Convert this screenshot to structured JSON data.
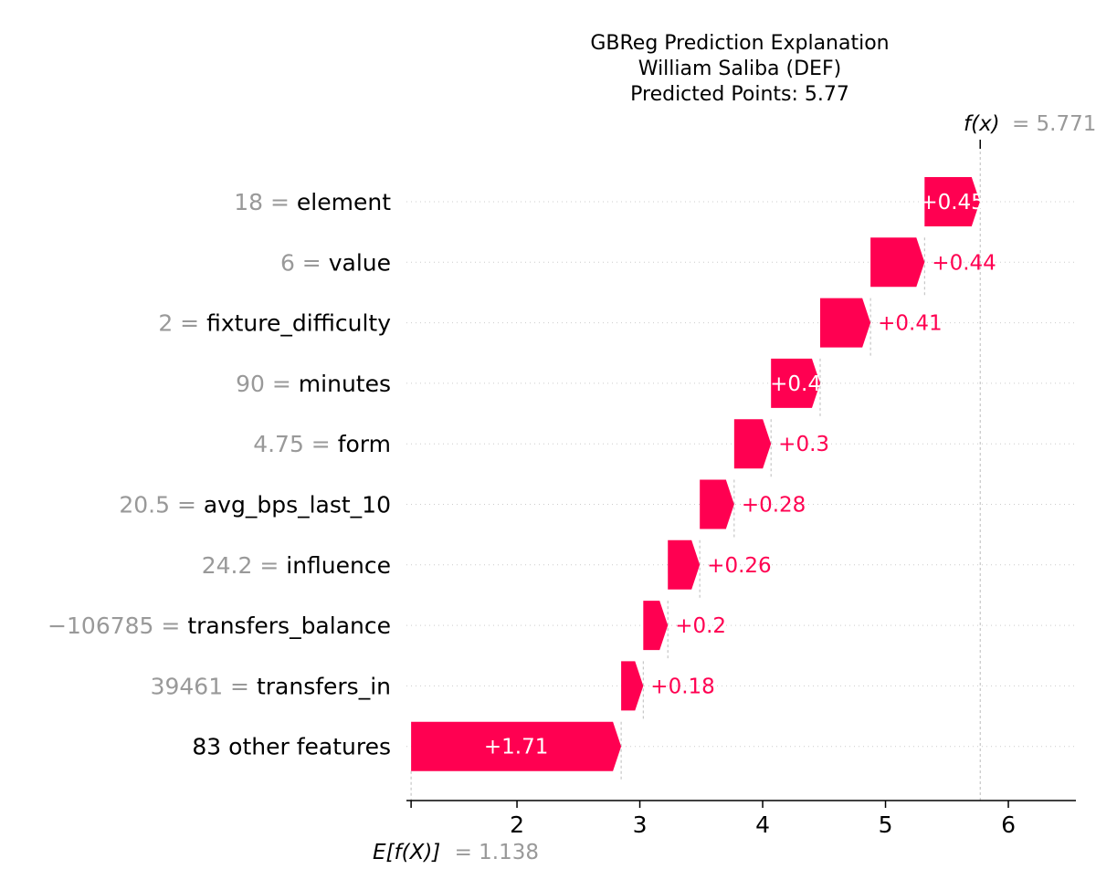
{
  "chart_data": {
    "type": "waterfall",
    "title_lines": [
      "GBReg Prediction Explanation",
      "William Saliba (DEF)",
      "Predicted Points: 5.77"
    ],
    "base_value_label": "E[f(X)]",
    "base_value_text": "= 1.138",
    "base_value": 1.138,
    "output_value_label": "f(x)",
    "output_value_text": "= 5.771",
    "output_value": 5.771,
    "xlim": [
      1.1,
      6.55
    ],
    "xticks": [
      2,
      3,
      4,
      5,
      6
    ],
    "xtick_labels": [
      "2",
      "3",
      "4",
      "5",
      "6"
    ],
    "positive_color": "#ff0051",
    "feature_value_color": "#999999",
    "features": [
      {
        "value_text": "18 =",
        "name": "element",
        "contribution": 0.45,
        "label": "+0.45"
      },
      {
        "value_text": "6 =",
        "name": "value",
        "contribution": 0.44,
        "label": "+0.44"
      },
      {
        "value_text": "2 =",
        "name": "fixture_difficulty",
        "contribution": 0.41,
        "label": "+0.41"
      },
      {
        "value_text": "90 =",
        "name": "minutes",
        "contribution": 0.4,
        "label": "+0.4"
      },
      {
        "value_text": "4.75 =",
        "name": "form",
        "contribution": 0.3,
        "label": "+0.3"
      },
      {
        "value_text": "20.5 =",
        "name": "avg_bps_last_10",
        "contribution": 0.28,
        "label": "+0.28"
      },
      {
        "value_text": "24.2 =",
        "name": "influence",
        "contribution": 0.26,
        "label": "+0.26"
      },
      {
        "value_text": "−106785 =",
        "name": "transfers_balance",
        "contribution": 0.2,
        "label": "+0.2"
      },
      {
        "value_text": "39461 =",
        "name": "transfers_in",
        "contribution": 0.18,
        "label": "+0.18"
      },
      {
        "value_text": "",
        "name": "83 other features",
        "contribution": 1.71,
        "label": "+1.71"
      }
    ]
  }
}
